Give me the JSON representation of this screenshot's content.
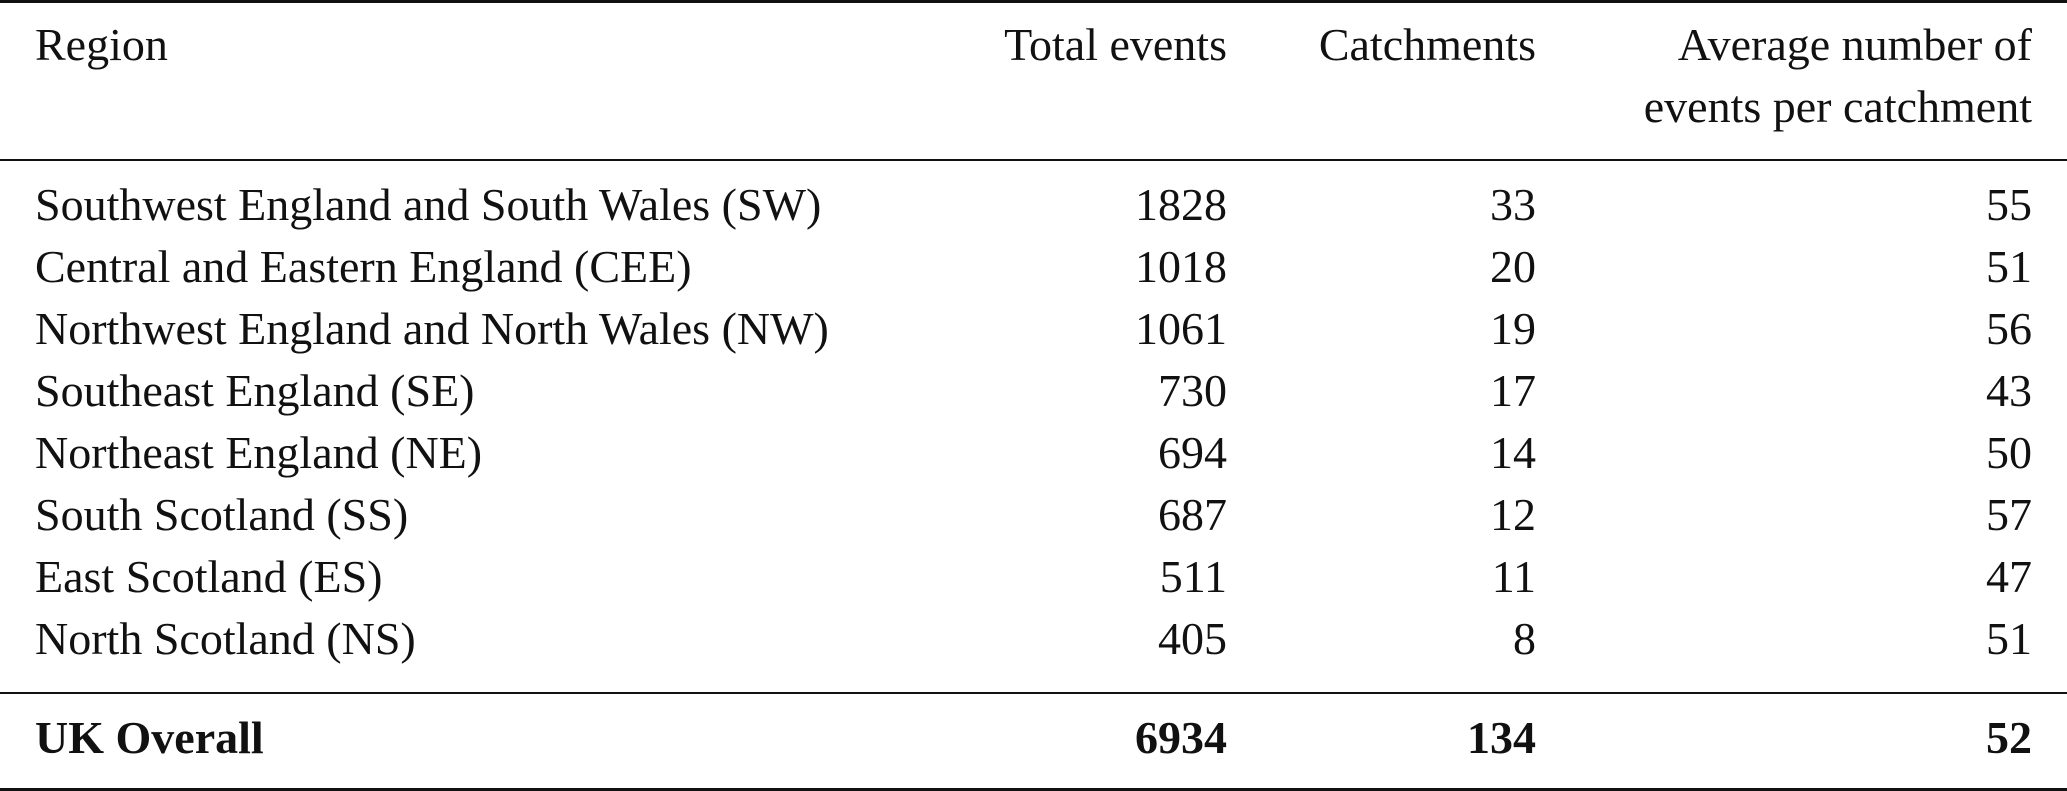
{
  "table": {
    "headers": {
      "region": "Region",
      "total_events": "Total events",
      "catchments": "Catchments",
      "average_line1": "Average number of",
      "average_line2": "events per catchment"
    },
    "rows": [
      {
        "region": "Southwest England and South Wales (SW)",
        "total_events": "1828",
        "catchments": "33",
        "average": "55"
      },
      {
        "region": "Central and Eastern England (CEE)",
        "total_events": "1018",
        "catchments": "20",
        "average": "51"
      },
      {
        "region": "Northwest England and North Wales (NW)",
        "total_events": "1061",
        "catchments": "19",
        "average": "56"
      },
      {
        "region": "Southeast England (SE)",
        "total_events": "730",
        "catchments": "17",
        "average": "43"
      },
      {
        "region": "Northeast England (NE)",
        "total_events": "694",
        "catchments": "14",
        "average": "50"
      },
      {
        "region": "South Scotland (SS)",
        "total_events": "687",
        "catchments": "12",
        "average": "57"
      },
      {
        "region": "East Scotland (ES)",
        "total_events": "511",
        "catchments": "11",
        "average": "47"
      },
      {
        "region": "North Scotland (NS)",
        "total_events": "405",
        "catchments": "8",
        "average": "51"
      }
    ],
    "total": {
      "region": "UK Overall",
      "total_events": "6934",
      "catchments": "134",
      "average": "52"
    }
  }
}
